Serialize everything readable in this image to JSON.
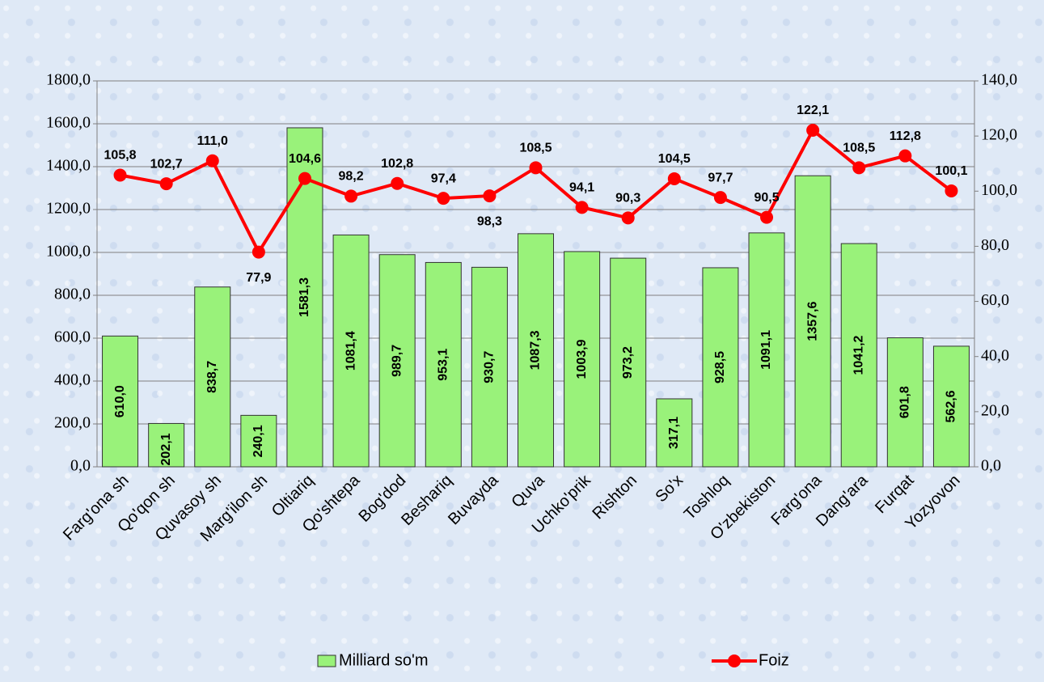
{
  "chart_data": {
    "type": "bar-line",
    "categories": [
      "Farg'ona sh",
      "Qo'qon sh",
      "Quvasoy sh",
      "Marg'ilon sh",
      "Oltiariq",
      "Qo'shtepa",
      "Bog'dod",
      "Beshariq",
      "Buvayda",
      "Quva",
      "Uchko'prik",
      "Rishton",
      "So'x",
      "Toshloq",
      "O'zbekiston",
      "Farg'ona",
      "Dang'ara",
      "Furqat",
      "Yozyovon"
    ],
    "series": [
      {
        "name": "Milliard so'm",
        "type": "bar",
        "color": "#99f27a",
        "axis": "y",
        "values": [
          610.0,
          202.1,
          838.7,
          240.1,
          1581.3,
          1081.4,
          989.7,
          953.1,
          930.7,
          1087.3,
          1003.9,
          973.2,
          317.1,
          928.5,
          1091.1,
          1357.6,
          1041.2,
          601.8,
          562.6
        ],
        "value_labels": [
          "610,0",
          "202,1",
          "838,7",
          "240,1",
          "1581,3",
          "1081,4",
          "989,7",
          "953,1",
          "930,7",
          "1087,3",
          "1003,9",
          "973,2",
          "317,1",
          "928,5",
          "1091,1",
          "1357,6",
          "1041,2",
          "601,8",
          "562,6"
        ]
      },
      {
        "name": "Foiz",
        "type": "line",
        "color": "#ff0000",
        "axis": "y2",
        "values": [
          105.8,
          102.7,
          111.0,
          77.9,
          104.6,
          98.2,
          102.8,
          97.4,
          98.3,
          108.5,
          94.1,
          90.3,
          104.5,
          97.7,
          90.5,
          122.1,
          108.5,
          112.8,
          100.1
        ],
        "value_labels": [
          "105,8",
          "102,7",
          "111,0",
          "77,9",
          "104,6",
          "98,2",
          "102,8",
          "97,4",
          "98,3",
          "108,5",
          "94,1",
          "90,3",
          "104,5",
          "97,7",
          "90,5",
          "122,1",
          "108,5",
          "112,8",
          "100,1"
        ]
      }
    ],
    "ylim": [
      0,
      1800
    ],
    "yticks": [
      {
        "value": 0,
        "label": "0,0"
      },
      {
        "value": 200,
        "label": "200,0"
      },
      {
        "value": 400,
        "label": "400,0"
      },
      {
        "value": 600,
        "label": "600,0"
      },
      {
        "value": 800,
        "label": "800,0"
      },
      {
        "value": 1000,
        "label": "1000,0"
      },
      {
        "value": 1200,
        "label": "1200,0"
      },
      {
        "value": 1400,
        "label": "1400,0"
      },
      {
        "value": 1600,
        "label": "1600,0"
      },
      {
        "value": 1800,
        "label": "1800,0"
      }
    ],
    "y2lim": [
      0,
      140
    ],
    "y2ticks": [
      {
        "value": 0,
        "label": "0,0"
      },
      {
        "value": 20,
        "label": "20,0"
      },
      {
        "value": 40,
        "label": "40,0"
      },
      {
        "value": 60,
        "label": "60,0"
      },
      {
        "value": 80,
        "label": "80,0"
      },
      {
        "value": 100,
        "label": "100,0"
      },
      {
        "value": 120,
        "label": "120,0"
      },
      {
        "value": 140,
        "label": "140,0"
      }
    ],
    "grid": true,
    "legend": "bottom"
  }
}
